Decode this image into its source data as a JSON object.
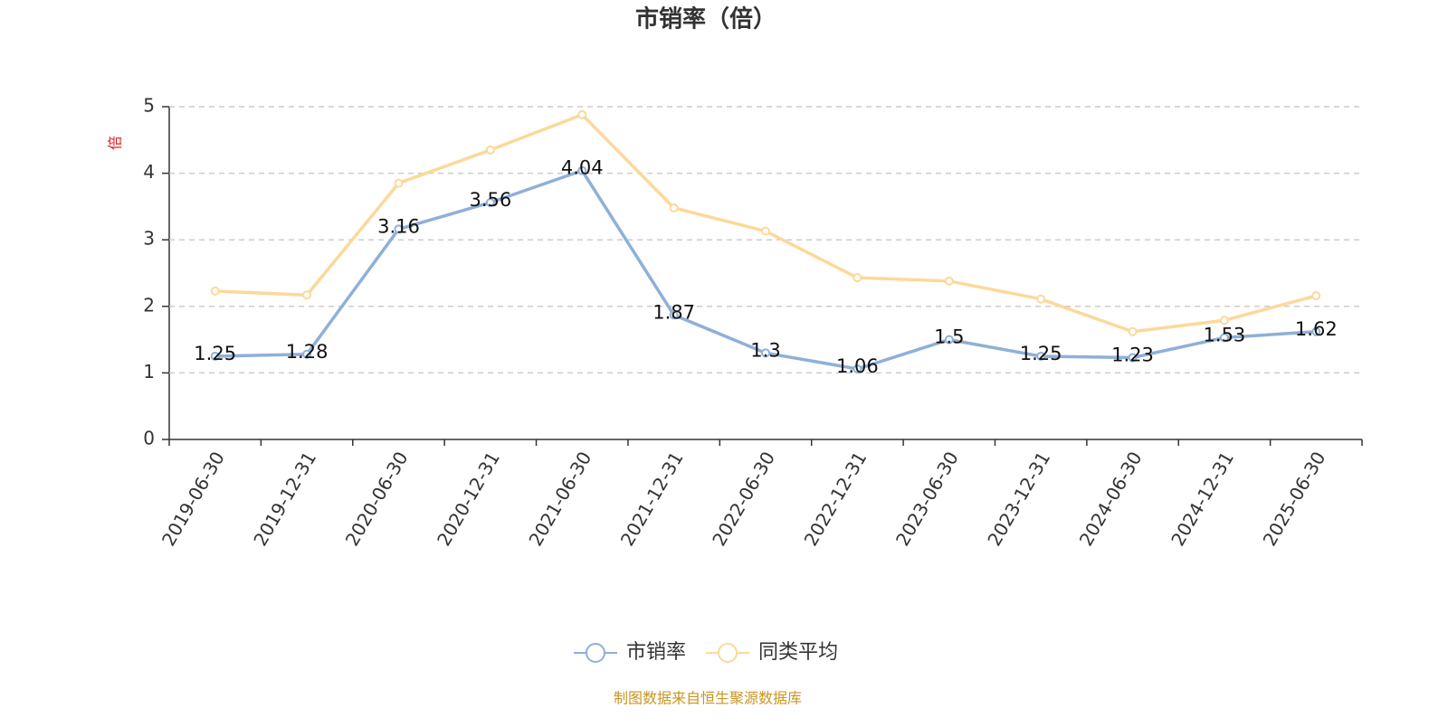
{
  "chart_data": {
    "type": "line",
    "title": "市销率（倍）",
    "ylabel": "倍",
    "categories": [
      "2019-06-30",
      "2019-12-31",
      "2020-06-30",
      "2020-12-31",
      "2021-06-30",
      "2021-12-31",
      "2022-06-30",
      "2022-12-31",
      "2023-06-30",
      "2023-12-31",
      "2024-06-30",
      "2024-12-31",
      "2025-06-30"
    ],
    "series": [
      {
        "name": "市销率",
        "color": "#8eb0d8",
        "values": [
          1.25,
          1.28,
          3.16,
          3.56,
          4.04,
          1.87,
          1.3,
          1.06,
          1.5,
          1.25,
          1.23,
          1.53,
          1.62
        ],
        "data_labels": true
      },
      {
        "name": "同类平均",
        "color": "#fbd99a",
        "values": [
          2.23,
          2.17,
          3.85,
          4.35,
          4.88,
          3.48,
          3.13,
          2.43,
          2.38,
          2.11,
          1.62,
          1.79,
          2.16
        ],
        "data_labels": false
      }
    ],
    "ylim": [
      0,
      5
    ],
    "yticks": [
      0,
      1,
      2,
      3,
      4,
      5
    ],
    "grid": true,
    "legend": "bottom",
    "source": "制图数据来自恒生聚源数据库"
  }
}
